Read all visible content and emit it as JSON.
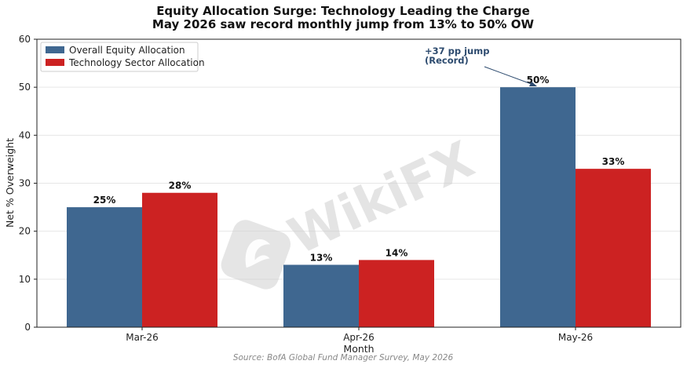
{
  "chart_data": {
    "type": "bar",
    "title": "Equity Allocation Surge: Technology Leading the Charge",
    "subtitle": "May 2026 saw record monthly jump from 13% to 50% OW",
    "xlabel": "Month",
    "ylabel": "Net % Overweight",
    "ylim": [
      0,
      60
    ],
    "yticks": [
      0,
      10,
      20,
      30,
      40,
      50,
      60
    ],
    "grid": true,
    "legend_position": "top-left",
    "categories": [
      "Mar-26",
      "Apr-26",
      "May-26"
    ],
    "series": [
      {
        "name": "Overall Equity Allocation",
        "values": [
          25,
          13,
          50
        ],
        "labels": [
          "25%",
          "13%",
          "50%"
        ],
        "color": "#3f6790"
      },
      {
        "name": "Technology Sector Allocation",
        "values": [
          28,
          14,
          33
        ],
        "labels": [
          "28%",
          "14%",
          "33%"
        ],
        "color": "#cc2222"
      }
    ],
    "annotation": {
      "lines": [
        "+37 pp jump",
        "(Record)"
      ],
      "points_to_category": "May-26",
      "points_to_series": 0,
      "color": "#2c4a6e"
    },
    "source": "Source: BofA Global Fund Manager Survey, May 2026"
  },
  "watermark": {
    "text": "WikiFX"
  }
}
